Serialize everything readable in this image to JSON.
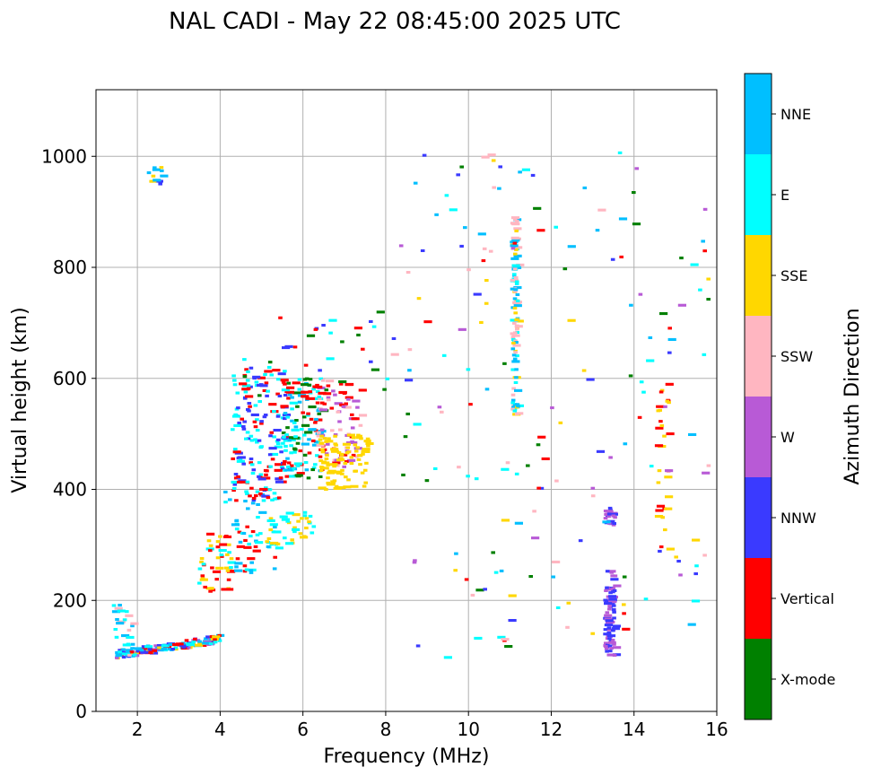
{
  "chart_data": {
    "type": "scatter",
    "title": "NAL CADI - May 22 08:45:00 2025 UTC",
    "xlabel": "Frequency (MHz)",
    "ylabel": "Virtual height (km)",
    "xlim": [
      1,
      16
    ],
    "ylim": [
      0,
      1120
    ],
    "xticks": [
      2,
      4,
      6,
      8,
      10,
      12,
      14,
      16
    ],
    "yticks": [
      0,
      200,
      400,
      600,
      800,
      1000
    ],
    "grid": true,
    "colorbar": {
      "label": "Azimuth Direction",
      "categories": [
        {
          "name": "X-mode",
          "color": "#008000"
        },
        {
          "name": "Vertical",
          "color": "#ff0000"
        },
        {
          "name": "NNW",
          "color": "#3a3aff"
        },
        {
          "name": "W",
          "color": "#b85ad6"
        },
        {
          "name": "SSW",
          "color": "#ffb6c1"
        },
        {
          "name": "SSE",
          "color": "#ffd700"
        },
        {
          "name": "E",
          "color": "#00ffff"
        },
        {
          "name": "NNE",
          "color": "#00bfff"
        }
      ]
    },
    "clusters": [
      {
        "name": "low-e-trace",
        "x": [
          1.5,
          4.0
        ],
        "y": [
          95,
          135
        ],
        "dir": [
          "Vertical",
          "NNW",
          "W",
          "E",
          "SSE",
          "NNE"
        ],
        "n": 150
      },
      {
        "name": "low-left-vertical",
        "x": [
          1.4,
          1.9
        ],
        "y": [
          100,
          200
        ],
        "dir": [
          "E",
          "NNE",
          "SSW"
        ],
        "n": 30
      },
      {
        "name": "f-rise-1",
        "x": [
          3.4,
          4.3
        ],
        "y": [
          215,
          320
        ],
        "dir": [
          "SSE",
          "Vertical",
          "E"
        ],
        "n": 45
      },
      {
        "name": "f-rise-2",
        "x": [
          4.1,
          5.4
        ],
        "y": [
          250,
          400
        ],
        "dir": [
          "E",
          "Vertical",
          "NNE"
        ],
        "n": 60
      },
      {
        "name": "f-trace-cyan",
        "x": [
          4.8,
          6.3
        ],
        "y": [
          300,
          360
        ],
        "dir": [
          "E",
          "SSE"
        ],
        "n": 40
      },
      {
        "name": "f-main-red",
        "x": [
          4.3,
          5.6
        ],
        "y": [
          380,
          620
        ],
        "dir": [
          "Vertical",
          "NNW",
          "E"
        ],
        "n": 170
      },
      {
        "name": "f-mid-green",
        "x": [
          5.5,
          6.5
        ],
        "y": [
          420,
          600
        ],
        "dir": [
          "X-mode",
          "E",
          "NNE",
          "Vertical"
        ],
        "n": 130
      },
      {
        "name": "f-pink",
        "x": [
          6.3,
          7.4
        ],
        "y": [
          440,
          600
        ],
        "dir": [
          "SSW",
          "W",
          "Vertical"
        ],
        "n": 80
      },
      {
        "name": "f-yellow-tail",
        "x": [
          6.4,
          7.6
        ],
        "y": [
          400,
          500
        ],
        "dir": [
          "SSE"
        ],
        "n": 90
      },
      {
        "name": "scatter-upper-mid",
        "x": [
          4.5,
          8.2
        ],
        "y": [
          560,
          720
        ],
        "dir": [
          "Vertical",
          "NNW",
          "E",
          "X-mode"
        ],
        "n": 40
      },
      {
        "name": "column-11mhz",
        "x": [
          11.05,
          11.2
        ],
        "y": [
          530,
          890
        ],
        "dir": [
          "SSE",
          "E",
          "NNE",
          "SSW"
        ],
        "n": 110
      },
      {
        "name": "column-13-5mhz-low",
        "x": [
          13.3,
          13.55
        ],
        "y": [
          100,
          255
        ],
        "dir": [
          "NNW",
          "W"
        ],
        "n": 80
      },
      {
        "name": "column-13-5mhz-mid",
        "x": [
          13.3,
          13.55
        ],
        "y": [
          335,
          370
        ],
        "dir": [
          "NNW",
          "W"
        ],
        "n": 20
      },
      {
        "name": "column-14-7mhz",
        "x": [
          14.55,
          14.85
        ],
        "y": [
          280,
          620
        ],
        "dir": [
          "SSE",
          "Vertical"
        ],
        "n": 30
      },
      {
        "name": "high-sparse",
        "x": [
          8,
          16
        ],
        "y": [
          80,
          1010
        ],
        "dir": [
          "SSE",
          "NNW",
          "W",
          "E",
          "SSW",
          "Vertical",
          "X-mode",
          "NNE"
        ],
        "n": 170
      },
      {
        "name": "top-left-blob",
        "x": [
          2.2,
          2.6
        ],
        "y": [
          950,
          985
        ],
        "dir": [
          "NNE",
          "SSE",
          "NNW"
        ],
        "n": 12
      }
    ]
  }
}
